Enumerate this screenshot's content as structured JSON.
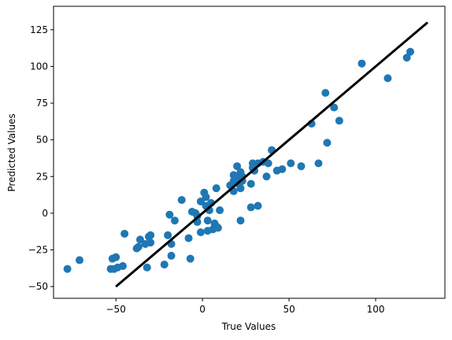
{
  "chart_data": {
    "type": "scatter",
    "title": "",
    "xlabel": "True Values",
    "ylabel": "Predicted Values",
    "xlim": [
      -86,
      140
    ],
    "ylim": [
      -58,
      141
    ],
    "xticks": [
      -50,
      0,
      50,
      100
    ],
    "yticks": [
      -50,
      -25,
      0,
      25,
      50,
      75,
      100,
      125
    ],
    "grid": false,
    "legend": "none",
    "colors": {
      "points": "#1f77b4",
      "line": "#000000"
    },
    "line": {
      "x": [
        -50,
        130
      ],
      "y": [
        -50,
        130
      ]
    },
    "points": [
      [
        -78,
        -38
      ],
      [
        -71,
        -32
      ],
      [
        -53,
        -38
      ],
      [
        -52,
        -31
      ],
      [
        -51,
        -38
      ],
      [
        -50,
        -30
      ],
      [
        -49,
        -37
      ],
      [
        -46,
        -36
      ],
      [
        -45,
        -14
      ],
      [
        -38,
        -24
      ],
      [
        -37,
        -23
      ],
      [
        -36,
        -18
      ],
      [
        -33,
        -21
      ],
      [
        -32,
        -37
      ],
      [
        -31,
        -16
      ],
      [
        -30,
        -20
      ],
      [
        -30,
        -15
      ],
      [
        -22,
        -35
      ],
      [
        -20,
        -15
      ],
      [
        -19,
        -1
      ],
      [
        -18,
        -29
      ],
      [
        -18,
        -21
      ],
      [
        -16,
        -5
      ],
      [
        -12,
        9
      ],
      [
        -8,
        -17
      ],
      [
        -7,
        -31
      ],
      [
        -6,
        1
      ],
      [
        -4,
        0
      ],
      [
        -3,
        -2
      ],
      [
        -3,
        -6
      ],
      [
        -1,
        -13
      ],
      [
        -1,
        8
      ],
      [
        1,
        14
      ],
      [
        2,
        5
      ],
      [
        2,
        11
      ],
      [
        3,
        -5
      ],
      [
        3,
        -12
      ],
      [
        4,
        2
      ],
      [
        5,
        7
      ],
      [
        6,
        -11
      ],
      [
        7,
        -7
      ],
      [
        8,
        -9
      ],
      [
        8,
        17
      ],
      [
        9,
        -10
      ],
      [
        10,
        2
      ],
      [
        18,
        15
      ],
      [
        18,
        22
      ],
      [
        18,
        26
      ],
      [
        20,
        32
      ],
      [
        20,
        24
      ],
      [
        21,
        20
      ],
      [
        22,
        17
      ],
      [
        22,
        28
      ],
      [
        22,
        -5
      ],
      [
        23,
        22
      ],
      [
        23,
        25
      ],
      [
        28,
        20
      ],
      [
        28,
        4
      ],
      [
        29,
        34
      ],
      [
        29,
        31
      ],
      [
        30,
        29
      ],
      [
        32,
        5
      ],
      [
        35,
        35
      ],
      [
        37,
        25
      ],
      [
        40,
        43
      ],
      [
        43,
        29
      ],
      [
        46,
        30
      ],
      [
        51,
        34
      ],
      [
        57,
        32
      ],
      [
        63,
        61
      ],
      [
        67,
        34
      ],
      [
        71,
        82
      ],
      [
        72,
        48
      ],
      [
        76,
        72
      ],
      [
        79,
        63
      ],
      [
        92,
        102
      ],
      [
        107,
        92
      ],
      [
        118,
        106
      ],
      [
        120,
        110
      ],
      [
        38,
        34
      ],
      [
        16,
        19
      ],
      [
        32,
        34
      ]
    ]
  }
}
